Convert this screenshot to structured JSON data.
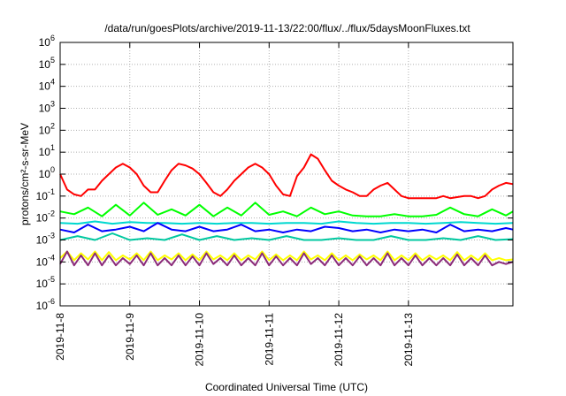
{
  "chart_data": {
    "type": "line",
    "title": "/data/run/goesPlots/archive/2019-11-13/22:00/flux/../flux/5daysMoonFluxes.txt",
    "xlabel": "Coordinated Universal Time (UTC)",
    "ylabel": "protons/cm²-s-sr-MeV",
    "yscale": "log",
    "ylim": [
      1e-06,
      1000000.0
    ],
    "xlim": [
      0,
      6.5
    ],
    "x_tick_labels": [
      "2019-11-8",
      "2019-11-9",
      "2019-11-10",
      "2019-11-11",
      "2019-11-12",
      "2019-11-13"
    ],
    "x_tick_values": [
      0,
      1,
      2,
      3,
      4,
      5
    ],
    "x_units": "days since 2019-11-8 00:00 UTC",
    "y_tick_labels": [
      {
        "base": "10",
        "exp": "-6"
      },
      {
        "base": "10",
        "exp": "-5"
      },
      {
        "base": "10",
        "exp": "-4"
      },
      {
        "base": "10",
        "exp": "-3"
      },
      {
        "base": "10",
        "exp": "-2"
      },
      {
        "base": "10",
        "exp": "-1"
      },
      {
        "base": "10",
        "exp": "0"
      },
      {
        "base": "10",
        "exp": "1"
      },
      {
        "base": "10",
        "exp": "2"
      },
      {
        "base": "10",
        "exp": "3"
      },
      {
        "base": "10",
        "exp": "4"
      },
      {
        "base": "10",
        "exp": "5"
      },
      {
        "base": "10",
        "exp": "6"
      }
    ],
    "grid": true,
    "legend": "none",
    "series": [
      {
        "color": "#ff0000",
        "x": [
          0.0,
          0.1,
          0.2,
          0.3,
          0.4,
          0.5,
          0.6,
          0.7,
          0.8,
          0.9,
          1.0,
          1.1,
          1.2,
          1.3,
          1.4,
          1.5,
          1.6,
          1.7,
          1.8,
          1.9,
          2.0,
          2.1,
          2.2,
          2.3,
          2.4,
          2.5,
          2.6,
          2.7,
          2.8,
          2.9,
          3.0,
          3.1,
          3.2,
          3.3,
          3.4,
          3.5,
          3.6,
          3.7,
          3.8,
          3.9,
          4.0,
          4.1,
          4.2,
          4.3,
          4.4,
          4.5,
          4.6,
          4.7,
          4.8,
          4.9,
          5.0,
          5.1,
          5.2,
          5.3,
          5.4,
          5.5,
          5.6,
          5.7,
          5.8,
          5.9,
          6.0,
          6.1,
          6.2,
          6.3,
          6.4,
          6.5
        ],
        "y": [
          1.0,
          0.2,
          0.12,
          0.1,
          0.2,
          0.2,
          0.5,
          1.0,
          2.0,
          3.0,
          2.0,
          1.0,
          0.3,
          0.15,
          0.15,
          0.5,
          1.5,
          3.0,
          2.5,
          1.8,
          1.0,
          0.4,
          0.15,
          0.1,
          0.2,
          0.5,
          1.0,
          2.0,
          3.0,
          2.0,
          1.0,
          0.3,
          0.12,
          0.1,
          0.8,
          2.0,
          8.0,
          5.0,
          1.5,
          0.5,
          0.3,
          0.2,
          0.15,
          0.1,
          0.1,
          0.2,
          0.3,
          0.4,
          0.2,
          0.1,
          0.08,
          0.08,
          0.08,
          0.08,
          0.08,
          0.1,
          0.08,
          0.09,
          0.1,
          0.1,
          0.08,
          0.1,
          0.2,
          0.3,
          0.4,
          0.35
        ]
      },
      {
        "color": "#00ff00",
        "x": [
          0.0,
          0.2,
          0.4,
          0.6,
          0.8,
          1.0,
          1.2,
          1.4,
          1.6,
          1.8,
          2.0,
          2.2,
          2.4,
          2.6,
          2.8,
          3.0,
          3.2,
          3.4,
          3.6,
          3.8,
          4.0,
          4.2,
          4.4,
          4.6,
          4.8,
          5.0,
          5.2,
          5.4,
          5.6,
          5.8,
          6.0,
          6.2,
          6.4,
          6.5
        ],
        "y": [
          0.02,
          0.015,
          0.03,
          0.012,
          0.04,
          0.013,
          0.05,
          0.014,
          0.025,
          0.013,
          0.04,
          0.012,
          0.03,
          0.013,
          0.05,
          0.014,
          0.02,
          0.012,
          0.03,
          0.015,
          0.02,
          0.013,
          0.012,
          0.012,
          0.015,
          0.012,
          0.012,
          0.014,
          0.03,
          0.015,
          0.012,
          0.025,
          0.013,
          0.02
        ]
      },
      {
        "color": "#00d8d0",
        "x": [
          0.0,
          0.25,
          0.5,
          0.75,
          1.0,
          1.25,
          1.5,
          1.75,
          2.0,
          2.25,
          2.5,
          2.75,
          3.0,
          3.25,
          3.5,
          3.75,
          4.0,
          4.25,
          4.5,
          4.75,
          5.0,
          5.25,
          5.5,
          5.75,
          6.0,
          6.25,
          6.5
        ],
        "y": [
          0.006,
          0.0055,
          0.007,
          0.0055,
          0.0065,
          0.006,
          0.006,
          0.0055,
          0.006,
          0.0055,
          0.006,
          0.006,
          0.0055,
          0.006,
          0.006,
          0.0055,
          0.007,
          0.006,
          0.0055,
          0.006,
          0.006,
          0.0055,
          0.006,
          0.0065,
          0.006,
          0.0055,
          0.006
        ]
      },
      {
        "color": "#0000ff",
        "x": [
          0.0,
          0.2,
          0.4,
          0.6,
          0.8,
          1.0,
          1.2,
          1.4,
          1.6,
          1.8,
          2.0,
          2.2,
          2.4,
          2.6,
          2.8,
          3.0,
          3.2,
          3.4,
          3.6,
          3.8,
          4.0,
          4.2,
          4.4,
          4.6,
          4.8,
          5.0,
          5.2,
          5.4,
          5.6,
          5.8,
          6.0,
          6.2,
          6.4,
          6.5
        ],
        "y": [
          0.003,
          0.0022,
          0.005,
          0.0025,
          0.003,
          0.004,
          0.0025,
          0.006,
          0.003,
          0.0025,
          0.004,
          0.0025,
          0.003,
          0.005,
          0.0025,
          0.003,
          0.0022,
          0.003,
          0.0025,
          0.004,
          0.0035,
          0.0025,
          0.003,
          0.0022,
          0.003,
          0.0025,
          0.003,
          0.0022,
          0.005,
          0.0025,
          0.003,
          0.0025,
          0.0035,
          0.003
        ]
      },
      {
        "color": "#00c8a0",
        "x": [
          0.0,
          0.25,
          0.5,
          0.75,
          1.0,
          1.25,
          1.5,
          1.75,
          2.0,
          2.25,
          2.5,
          2.75,
          3.0,
          3.25,
          3.5,
          3.75,
          4.0,
          4.25,
          4.5,
          4.75,
          5.0,
          5.25,
          5.5,
          5.75,
          6.0,
          6.25,
          6.5
        ],
        "y": [
          0.001,
          0.0015,
          0.001,
          0.002,
          0.001,
          0.0012,
          0.001,
          0.0018,
          0.001,
          0.0015,
          0.001,
          0.0012,
          0.001,
          0.0015,
          0.001,
          0.001,
          0.0012,
          0.001,
          0.001,
          0.0015,
          0.001,
          0.001,
          0.0012,
          0.001,
          0.0015,
          0.001,
          0.0011
        ]
      },
      {
        "color": "#ffff00",
        "x": [
          0.0,
          0.1,
          0.2,
          0.3,
          0.4,
          0.5,
          0.6,
          0.7,
          0.8,
          0.9,
          1.0,
          1.1,
          1.2,
          1.3,
          1.4,
          1.5,
          1.6,
          1.7,
          1.8,
          1.9,
          2.0,
          2.1,
          2.2,
          2.3,
          2.4,
          2.5,
          2.6,
          2.7,
          2.8,
          2.9,
          3.0,
          3.1,
          3.2,
          3.3,
          3.4,
          3.5,
          3.6,
          3.7,
          3.8,
          3.9,
          4.0,
          4.1,
          4.2,
          4.3,
          4.4,
          4.5,
          4.6,
          4.7,
          4.8,
          4.9,
          5.0,
          5.1,
          5.2,
          5.3,
          5.4,
          5.5,
          5.6,
          5.7,
          5.8,
          5.9,
          6.0,
          6.1,
          6.2,
          6.3,
          6.4,
          6.5
        ],
        "y": [
          0.00015,
          0.0003,
          0.00012,
          0.00025,
          0.00013,
          0.0003,
          0.00012,
          0.00028,
          0.00012,
          0.0002,
          0.00013,
          0.00025,
          0.00012,
          0.0003,
          0.00012,
          0.0002,
          0.00013,
          0.00025,
          0.00012,
          0.00022,
          0.00012,
          0.0003,
          0.00013,
          0.0002,
          0.00012,
          0.00025,
          0.00012,
          0.0002,
          0.00013,
          0.0003,
          0.00012,
          0.00022,
          0.00012,
          0.0002,
          0.00012,
          0.0003,
          0.00013,
          0.0002,
          0.00012,
          0.00025,
          0.00012,
          0.0002,
          0.00012,
          0.00022,
          0.00013,
          0.0002,
          0.00012,
          0.0003,
          0.00012,
          0.0002,
          0.00012,
          0.00025,
          0.00012,
          0.0002,
          0.00013,
          0.0002,
          0.00012,
          0.00028,
          0.00012,
          0.0002,
          0.00012,
          0.00025,
          0.00012,
          0.00015,
          0.00012,
          0.00013
        ]
      },
      {
        "color": "#8b2b7a",
        "x": [
          0.0,
          0.1,
          0.2,
          0.3,
          0.4,
          0.5,
          0.6,
          0.7,
          0.8,
          0.9,
          1.0,
          1.1,
          1.2,
          1.3,
          1.4,
          1.5,
          1.6,
          1.7,
          1.8,
          1.9,
          2.0,
          2.1,
          2.2,
          2.3,
          2.4,
          2.5,
          2.6,
          2.7,
          2.8,
          2.9,
          3.0,
          3.1,
          3.2,
          3.3,
          3.4,
          3.5,
          3.6,
          3.7,
          3.8,
          3.9,
          4.0,
          4.1,
          4.2,
          4.3,
          4.4,
          4.5,
          4.6,
          4.7,
          4.8,
          4.9,
          5.0,
          5.1,
          5.2,
          5.3,
          5.4,
          5.5,
          5.6,
          5.7,
          5.8,
          5.9,
          6.0,
          6.1,
          6.2,
          6.3,
          6.4,
          6.5
        ],
        "y": [
          8e-05,
          0.0003,
          7e-05,
          0.0002,
          7e-05,
          0.00025,
          7e-05,
          0.0002,
          7e-05,
          0.00015,
          8e-05,
          0.0002,
          7e-05,
          0.00025,
          7e-05,
          0.00015,
          7e-05,
          0.0002,
          7e-05,
          0.00018,
          7e-05,
          0.00025,
          8e-05,
          0.00015,
          7e-05,
          0.0002,
          7e-05,
          0.00015,
          7e-05,
          0.00025,
          7e-05,
          0.00018,
          7e-05,
          0.00015,
          7e-05,
          0.00025,
          8e-05,
          0.00015,
          7e-05,
          0.0002,
          7e-05,
          0.00015,
          7e-05,
          0.00018,
          7e-05,
          0.00015,
          7e-05,
          0.00025,
          7e-05,
          0.00015,
          7e-05,
          0.0002,
          7e-05,
          0.00015,
          7e-05,
          0.00015,
          7e-05,
          0.00022,
          7e-05,
          0.00015,
          7e-05,
          0.0002,
          7e-05,
          0.0001,
          8e-05,
          0.0001
        ]
      }
    ]
  }
}
